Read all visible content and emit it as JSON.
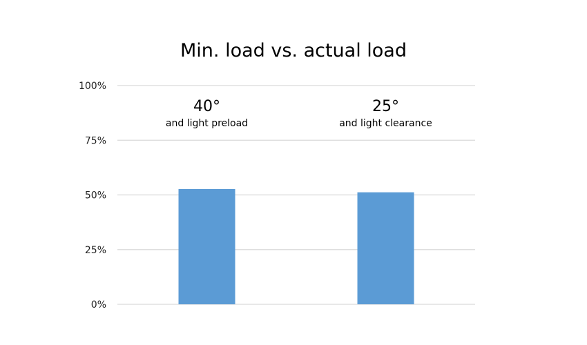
{
  "chart_data": {
    "type": "bar",
    "title": "Min. load vs. actual load",
    "xlabel": "",
    "ylabel": "",
    "categories": [
      {
        "heading": "40°",
        "subheading": "and light preload"
      },
      {
        "heading": "25°",
        "subheading": "and light clearance"
      }
    ],
    "values": [
      52.7,
      51.2
    ],
    "ylim": [
      0,
      100
    ],
    "yticks": [
      {
        "value": 0,
        "label": "0%"
      },
      {
        "value": 25,
        "label": "25%"
      },
      {
        "value": 50,
        "label": "50%"
      },
      {
        "value": 75,
        "label": "75%"
      },
      {
        "value": 100,
        "label": "100%"
      }
    ],
    "grid": true,
    "legend": "none",
    "colors": {
      "bar": "#5b9bd5",
      "grid": "#d9d9d9"
    }
  }
}
